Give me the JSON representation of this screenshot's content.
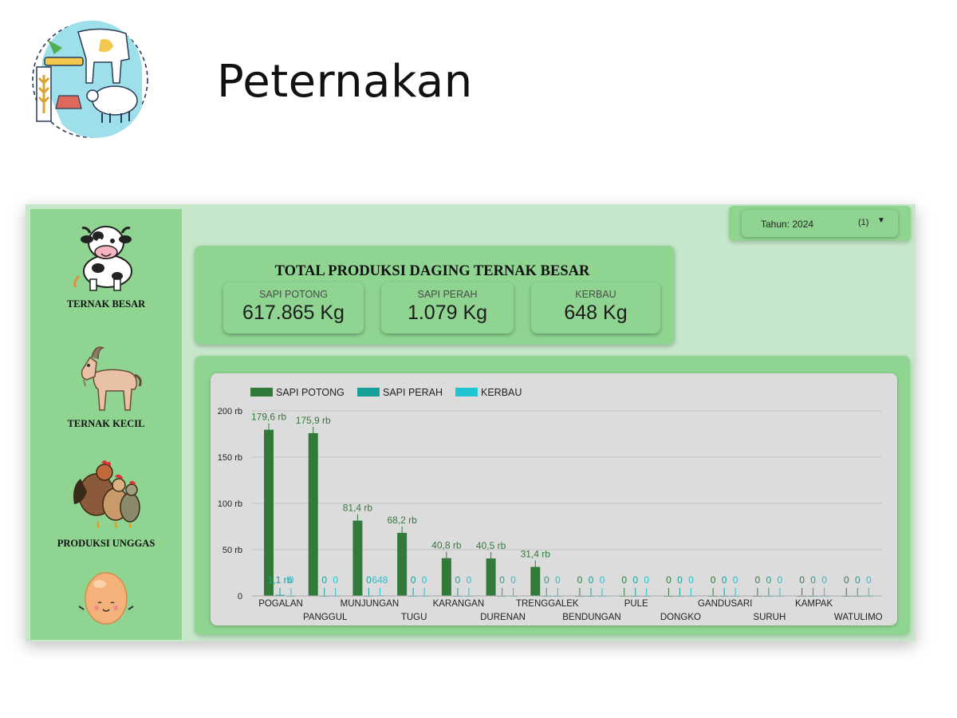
{
  "page": {
    "title": "Peternakan"
  },
  "sidebar": {
    "items": [
      {
        "label": "TERNAK BESAR",
        "icon": "cow-icon"
      },
      {
        "label": "TERNAK KECIL",
        "icon": "goat-icon"
      },
      {
        "label": "PRODUKSI UNGGAS",
        "icon": "chickens-icon"
      },
      {
        "label": "",
        "icon": "egg-icon"
      }
    ]
  },
  "filter": {
    "label": "Tahun: 2024",
    "count": "(1)",
    "caret": "▼"
  },
  "totals": {
    "title": "TOTAL PRODUKSI DAGING TERNAK BESAR",
    "stats": [
      {
        "label": "SAPI POTONG",
        "value": "617.865 Kg"
      },
      {
        "label": "SAPI PERAH",
        "value": "1.079 Kg"
      },
      {
        "label": "KERBAU",
        "value": "648 Kg"
      }
    ]
  },
  "colors": {
    "sapi_potong": "#327a3a",
    "sapi_perah": "#15a09a",
    "kerbau": "#1fc4cf",
    "panel": "#8fd491",
    "background": "#c6e7c9"
  },
  "chart_data": {
    "type": "bar",
    "categories": [
      "POGALAN",
      "PANGGUL",
      "MUNJUNGAN",
      "TUGU",
      "KARANGAN",
      "DURENAN",
      "TRENGGALEK",
      "BENDUNGAN",
      "PULE",
      "DONGKO",
      "GANDUSARI",
      "SURUH",
      "KAMPAK",
      "WATULIMO"
    ],
    "series": [
      {
        "name": "SAPI POTONG",
        "values": [
          179.6,
          175.9,
          81.4,
          68.2,
          40.8,
          40.5,
          31.4,
          0,
          0,
          0,
          0,
          0,
          0,
          0
        ],
        "labels": [
          "179,6 rb",
          "175,9 rb",
          "81,4 rb",
          "68,2 rb",
          "40,8 rb",
          "40,5 rb",
          "31,4 rb",
          "0",
          "0",
          "0",
          "0",
          "0",
          "0",
          "0"
        ]
      },
      {
        "name": "SAPI PERAH",
        "values": [
          1.1,
          0,
          0,
          0,
          0,
          0,
          0,
          0,
          0,
          0,
          0,
          0,
          0,
          0
        ],
        "labels": [
          "1,1 rb",
          "0",
          "0",
          "0",
          "0",
          "0",
          "0",
          "0",
          "0",
          "0",
          "0",
          "0",
          "0",
          "0"
        ]
      },
      {
        "name": "KERBAU",
        "values": [
          0,
          0,
          0.648,
          0,
          0,
          0,
          0,
          0,
          0,
          0,
          0,
          0,
          0,
          0
        ],
        "labels": [
          "0",
          "0",
          "648",
          "0",
          "0",
          "0",
          "0",
          "0",
          "0",
          "0",
          "0",
          "0",
          "0",
          "0"
        ]
      }
    ],
    "yticks": [
      "0",
      "50 rb",
      "100 rb",
      "150 rb",
      "200 rb"
    ],
    "ylim": [
      0,
      200
    ],
    "legend": "top-left",
    "grid": true
  }
}
